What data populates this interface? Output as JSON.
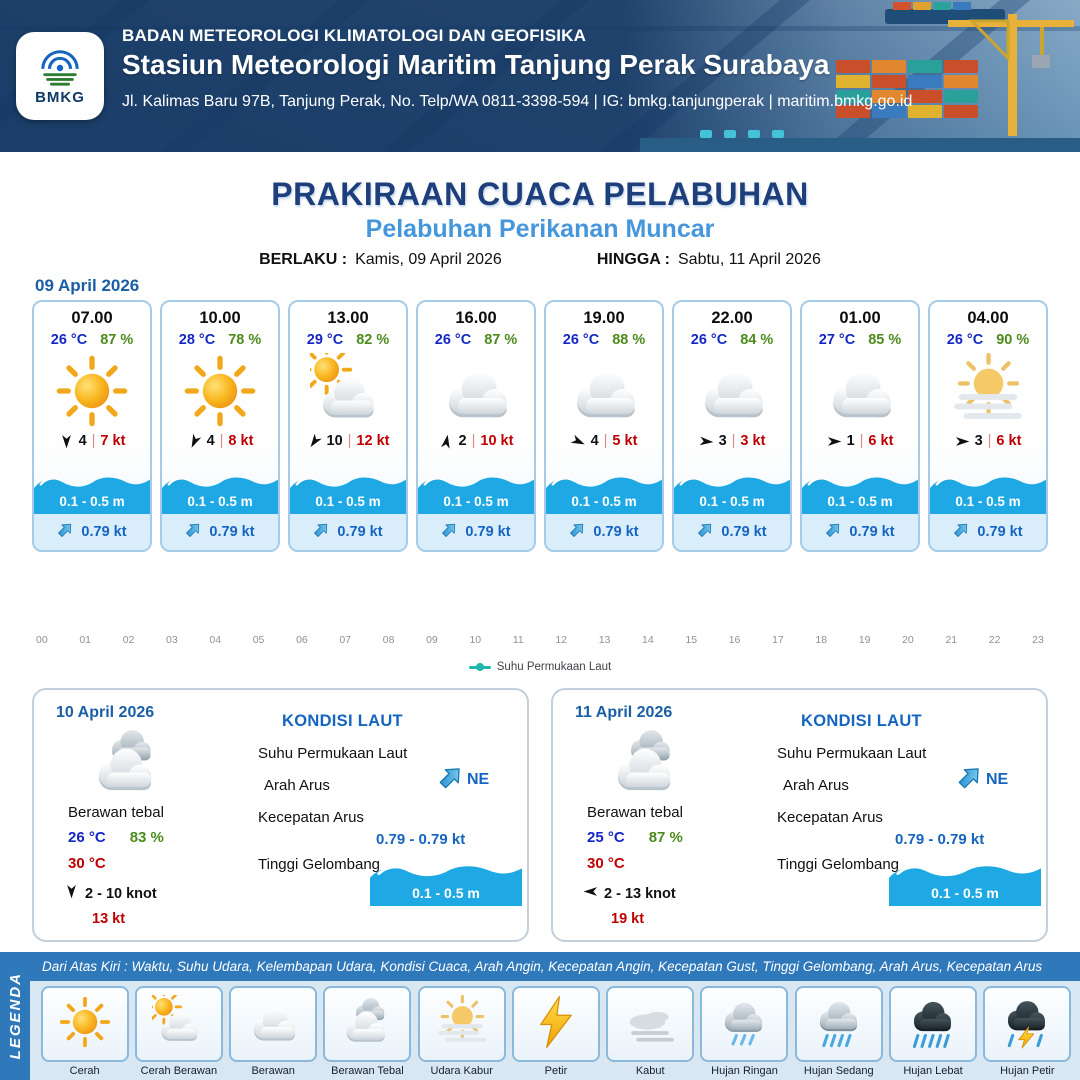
{
  "header": {
    "logo": "BMKG",
    "agency": "BADAN METEOROLOGI KLIMATOLOGI DAN GEOFISIKA",
    "station": "Stasiun Meteorologi Maritim Tanjung Perak Surabaya",
    "address": "Jl. Kalimas Baru 97B, Tanjung Perak, No. Telp/WA 0811-3398-594 | IG: bmkg.tanjungperak | maritim.bmkg.go.id"
  },
  "title": {
    "main": "PRAKIRAAN CUACA PELABUHAN",
    "subtitle": "Pelabuhan Perikanan Muncar",
    "berlaku_label": "BERLAKU :",
    "berlaku_value": "Kamis, 09 April 2026",
    "hingga_label": "HINGGA :",
    "hingga_value": "Sabtu, 11 April 2026"
  },
  "forecast": {
    "date": "09 April 2026",
    "cards": [
      {
        "time": "07.00",
        "temp": "26 °C",
        "humidity": "87 %",
        "icon": "cerah",
        "wind_dir": 180,
        "wind_speed": "4",
        "gust": "7 kt",
        "wave": "0.1 - 0.5 m",
        "current": "0.79 kt"
      },
      {
        "time": "10.00",
        "temp": "28 °C",
        "humidity": "78 %",
        "icon": "cerah",
        "wind_dir": 205,
        "wind_speed": "4",
        "gust": "8 kt",
        "wave": "0.1 - 0.5 m",
        "current": "0.79 kt"
      },
      {
        "time": "13.00",
        "temp": "29 °C",
        "humidity": "82 %",
        "icon": "cerah-berawan",
        "wind_dir": 215,
        "wind_speed": "10",
        "gust": "12 kt",
        "wave": "0.1 - 0.5 m",
        "current": "0.79 kt"
      },
      {
        "time": "16.00",
        "temp": "26 °C",
        "humidity": "87 %",
        "icon": "berawan",
        "wind_dir": 10,
        "wind_speed": "2",
        "gust": "10 kt",
        "wave": "0.1 - 0.5 m",
        "current": "0.79 kt"
      },
      {
        "time": "19.00",
        "temp": "26 °C",
        "humidity": "88 %",
        "icon": "berawan",
        "wind_dir": 115,
        "wind_speed": "4",
        "gust": "5 kt",
        "wave": "0.1 - 0.5 m",
        "current": "0.79 kt"
      },
      {
        "time": "22.00",
        "temp": "26 °C",
        "humidity": "84 %",
        "icon": "berawan",
        "wind_dir": 95,
        "wind_speed": "3",
        "gust": "3 kt",
        "wave": "0.1 - 0.5 m",
        "current": "0.79 kt"
      },
      {
        "time": "01.00",
        "temp": "27 °C",
        "humidity": "85 %",
        "icon": "berawan",
        "wind_dir": 90,
        "wind_speed": "1",
        "gust": "6 kt",
        "wave": "0.1 - 0.5 m",
        "current": "0.79 kt"
      },
      {
        "time": "04.00",
        "temp": "26 °C",
        "humidity": "90 %",
        "icon": "udara-kabur",
        "wind_dir": 90,
        "wind_speed": "3",
        "gust": "6 kt",
        "wave": "0.1 - 0.5 m",
        "current": "0.79 kt"
      }
    ]
  },
  "chart": {
    "hours": [
      "00",
      "01",
      "02",
      "03",
      "04",
      "05",
      "06",
      "07",
      "08",
      "09",
      "10",
      "11",
      "12",
      "13",
      "14",
      "15",
      "16",
      "17",
      "18",
      "19",
      "20",
      "21",
      "22",
      "23"
    ],
    "legend_label": "Suhu Permukaan Laut"
  },
  "days": [
    {
      "date": "10 April 2026",
      "icon": "berawan-tebal",
      "condition": "Berawan tebal",
      "temp": "26 °C",
      "humidity": "83 %",
      "temp2": "30 °C",
      "wind_dir": 180,
      "wind_range": "2  - 10 knot",
      "gust": "13 kt",
      "sea": {
        "title": "KONDISI LAUT",
        "sst_label": "Suhu Permukaan Laut",
        "dir_label": "Arah Arus",
        "dir_value": "NE",
        "speed_label": "Kecepatan Arus",
        "speed_value": "0.79  - 0.79 kt",
        "wave_label": "Tinggi Gelombang",
        "wave_value": "0.1 - 0.5 m"
      }
    },
    {
      "date": "11 April 2026",
      "icon": "berawan-tebal",
      "condition": "Berawan tebal",
      "temp": "25 °C",
      "humidity": "87 %",
      "temp2": "30 °C",
      "wind_dir": 270,
      "wind_range": "2  - 13 knot",
      "gust": "19 kt",
      "sea": {
        "title": "KONDISI LAUT",
        "sst_label": "Suhu Permukaan Laut",
        "dir_label": "Arah Arus",
        "dir_value": "NE",
        "speed_label": "Kecepatan Arus",
        "speed_value": "0.79  - 0.79 kt",
        "wave_label": "Tinggi Gelombang",
        "wave_value": "0.1 - 0.5 m"
      }
    }
  ],
  "legend": {
    "label": "LEGENDA",
    "note": "Dari Atas Kiri : Waktu, Suhu Udara, Kelembapan Udara, Kondisi Cuaca, Arah Angin, Kecepatan Angin, Kecepatan Gust, Tinggi Gelombang, Arah Arus, Kecepatan Arus",
    "items": [
      {
        "icon": "cerah",
        "label": "Cerah"
      },
      {
        "icon": "cerah-berawan",
        "label": "Cerah Berawan"
      },
      {
        "icon": "berawan",
        "label": "Berawan"
      },
      {
        "icon": "berawan-tebal",
        "label": "Berawan Tebal"
      },
      {
        "icon": "udara-kabur",
        "label": "Udara Kabur"
      },
      {
        "icon": "petir",
        "label": "Petir"
      },
      {
        "icon": "kabut",
        "label": "Kabut"
      },
      {
        "icon": "hujan-ringan",
        "label": "Hujan Ringan"
      },
      {
        "icon": "hujan-sedang",
        "label": "Hujan Sedang"
      },
      {
        "icon": "hujan-lebat",
        "label": "Hujan Lebat"
      },
      {
        "icon": "hujan-petir",
        "label": "Hujan Petir"
      }
    ]
  },
  "colors": {
    "header_blue": "#17496e",
    "title_navy": "#1e3f7c",
    "subtitle_blue": "#4596da",
    "temp_blue": "#1526c4",
    "humidity_green": "#4c8b1b",
    "gust_red": "#c00000",
    "wave_blue": "#1ea9e4",
    "current_blue": "#1565c0",
    "bottom_bar_blue": "#2f78ba"
  }
}
